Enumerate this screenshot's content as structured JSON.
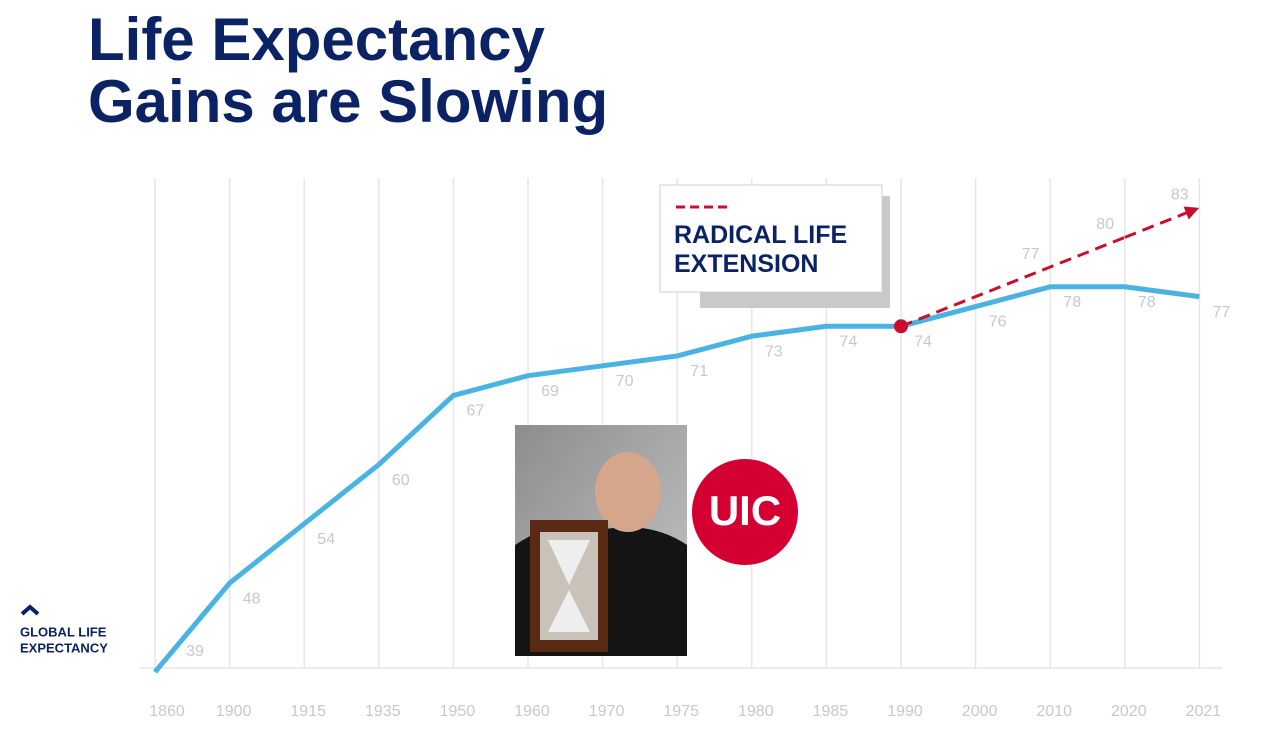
{
  "chart_data": {
    "type": "line",
    "title": "Life Expectancy Gains are Slowing",
    "categories": [
      "1860",
      "1900",
      "1915",
      "1935",
      "1950",
      "1960",
      "1970",
      "1975",
      "1980",
      "1985",
      "1990",
      "2000",
      "2010",
      "2020",
      "2021"
    ],
    "series": [
      {
        "color": "#4ab3e2",
        "values": [
          39,
          48,
          54,
          60,
          67,
          69,
          70,
          71,
          73,
          74,
          74,
          76,
          78,
          78,
          77
        ]
      },
      {
        "name": "RADICAL LIFE EXTENSION",
        "color": "#c8102e",
        "dashed": true,
        "values": [
          null,
          null,
          null,
          null,
          null,
          null,
          null,
          null,
          null,
          null,
          74,
          77,
          80,
          83,
          null
        ]
      }
    ],
    "ylim": [
      39,
      88
    ],
    "grid": true
  },
  "logo": {
    "line1": "GLOBAL LIFE",
    "line2": "EXPECTANCY"
  },
  "badge": "UIC"
}
